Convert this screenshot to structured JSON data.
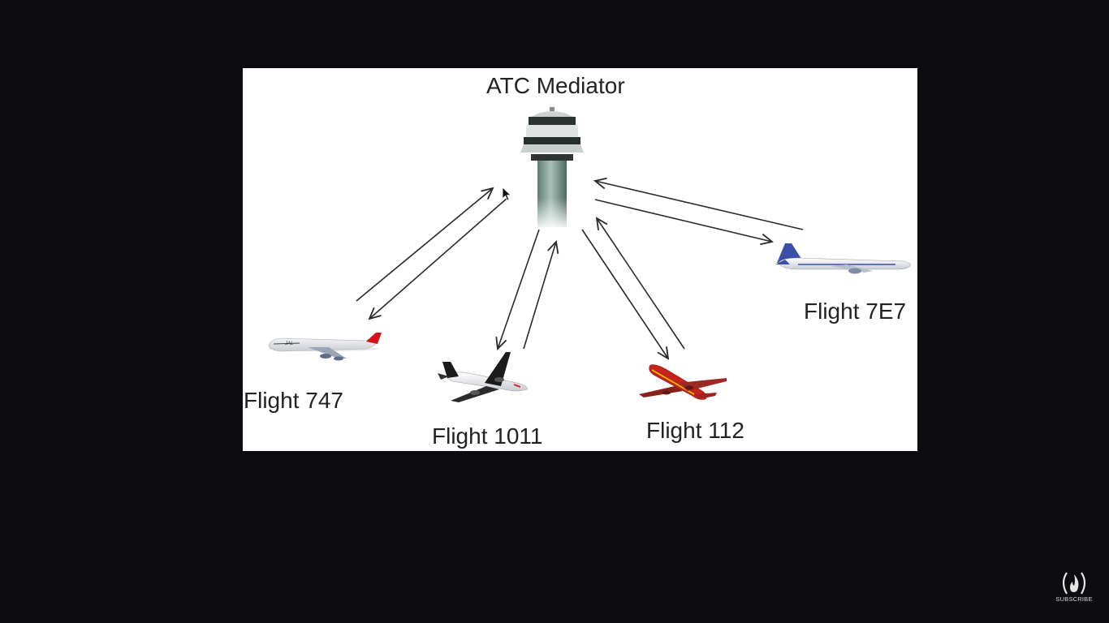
{
  "diagram": {
    "title": "ATC Mediator",
    "nodes": [
      {
        "id": "tower",
        "label": "ATC Mediator",
        "icon": "control-tower-icon"
      },
      {
        "id": "f747",
        "label": "Flight 747",
        "icon": "airplane-747-icon",
        "livery": "#d3121a"
      },
      {
        "id": "f1011",
        "label": "Flight 1011",
        "icon": "airplane-1011-icon",
        "livery": "#1b1b1b"
      },
      {
        "id": "f112",
        "label": "Flight 112",
        "icon": "airplane-112-icon",
        "livery": "#c8221c"
      },
      {
        "id": "f7e7",
        "label": "Flight 7E7",
        "icon": "airplane-7e7-icon",
        "livery": "#3a4fa8"
      }
    ],
    "edges": [
      {
        "from": "f747",
        "to": "tower"
      },
      {
        "from": "tower",
        "to": "f747"
      },
      {
        "from": "f1011",
        "to": "tower"
      },
      {
        "from": "tower",
        "to": "f1011"
      },
      {
        "from": "f112",
        "to": "tower"
      },
      {
        "from": "tower",
        "to": "f112"
      },
      {
        "from": "f7e7",
        "to": "tower"
      },
      {
        "from": "tower",
        "to": "f7e7"
      }
    ]
  },
  "overlay": {
    "subscribe_label": "SUBSCRIBE",
    "subscribe_icon": "flame-logo-icon"
  },
  "colors": {
    "background": "#0d0c10",
    "slide": "#ffffff",
    "arrow": "#2a2a2a"
  }
}
